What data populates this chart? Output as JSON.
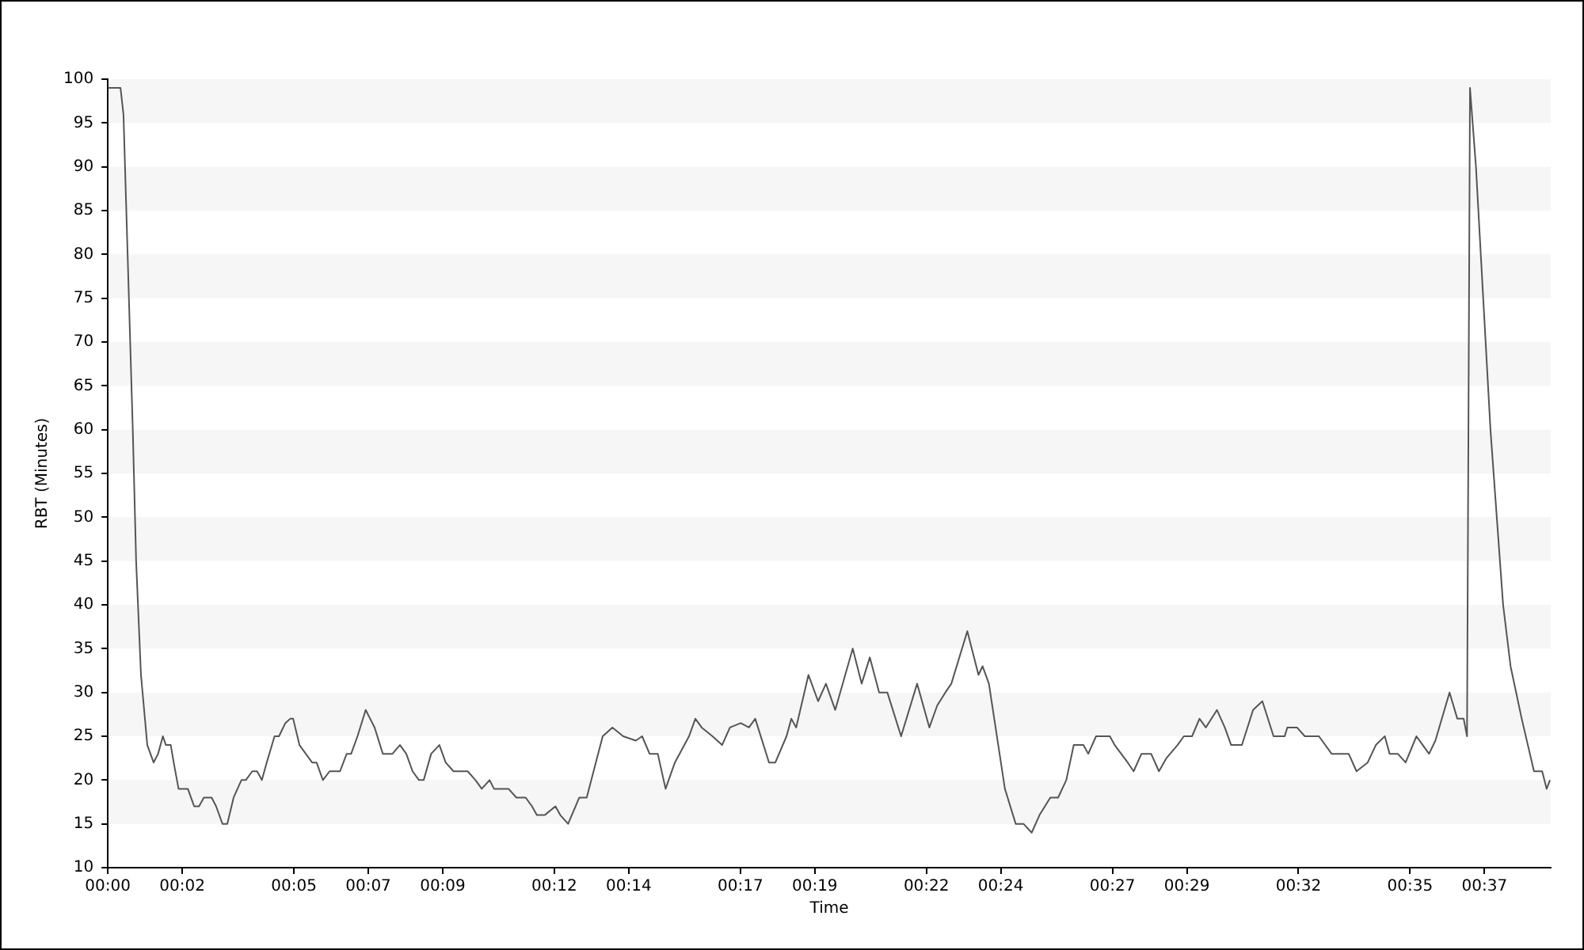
{
  "chart_data": {
    "type": "line",
    "xlabel": "Time",
    "ylabel": "RBT (Minutes)",
    "xlim": [
      0,
      38.78
    ],
    "ylim": [
      10,
      100
    ],
    "xticks": [
      {
        "value": 0,
        "label": "00:00"
      },
      {
        "value": 2,
        "label": "00:02"
      },
      {
        "value": 5,
        "label": "00:05"
      },
      {
        "value": 7,
        "label": "00:07"
      },
      {
        "value": 9,
        "label": "00:09"
      },
      {
        "value": 12,
        "label": "00:12"
      },
      {
        "value": 14,
        "label": "00:14"
      },
      {
        "value": 17,
        "label": "00:17"
      },
      {
        "value": 19,
        "label": "00:19"
      },
      {
        "value": 22,
        "label": "00:22"
      },
      {
        "value": 24,
        "label": "00:24"
      },
      {
        "value": 27,
        "label": "00:27"
      },
      {
        "value": 29,
        "label": "00:29"
      },
      {
        "value": 32,
        "label": "00:32"
      },
      {
        "value": 35,
        "label": "00:35"
      },
      {
        "value": 37,
        "label": "00:37"
      }
    ],
    "yticks": [
      10,
      15,
      20,
      25,
      30,
      35,
      40,
      45,
      50,
      55,
      60,
      65,
      70,
      75,
      80,
      85,
      90,
      95,
      100
    ],
    "legend": false,
    "marker": "none",
    "bands": [
      {
        "axis": "y",
        "from": 15,
        "to": 20,
        "color": "#f6f6f6"
      },
      {
        "axis": "y",
        "from": 25,
        "to": 30,
        "color": "#f6f6f6"
      },
      {
        "axis": "y",
        "from": 35,
        "to": 40,
        "color": "#f6f6f6"
      },
      {
        "axis": "y",
        "from": 45,
        "to": 50,
        "color": "#f6f6f6"
      },
      {
        "axis": "y",
        "from": 55,
        "to": 60,
        "color": "#f6f6f6"
      },
      {
        "axis": "y",
        "from": 65,
        "to": 70,
        "color": "#f6f6f6"
      },
      {
        "axis": "y",
        "from": 75,
        "to": 80,
        "color": "#f6f6f6"
      },
      {
        "axis": "y",
        "from": 85,
        "to": 90,
        "color": "#f6f6f6"
      },
      {
        "axis": "y",
        "from": 95,
        "to": 100,
        "color": "#f6f6f6"
      }
    ],
    "series": [
      {
        "color": "#555555",
        "x": [
          0,
          0.34,
          0.42,
          0.67,
          0.76,
          0.89,
          1.06,
          1.23,
          1.35,
          1.48,
          1.56,
          1.69,
          1.77,
          1.9,
          2.03,
          2.15,
          2.32,
          2.45,
          2.58,
          2.79,
          2.91,
          3.08,
          3.21,
          3.38,
          3.59,
          3.71,
          3.88,
          4.01,
          4.14,
          4.27,
          4.48,
          4.6,
          4.77,
          4.9,
          4.98,
          5.15,
          5.32,
          5.49,
          5.61,
          5.78,
          5.96,
          6.24,
          6.42,
          6.54,
          6.71,
          6.93,
          7.05,
          7.17,
          7.39,
          7.65,
          7.85,
          8.02,
          8.19,
          8.36,
          8.49,
          8.69,
          8.91,
          9.08,
          9.29,
          9.67,
          9.88,
          10.05,
          10.26,
          10.38,
          10.77,
          10.98,
          11.23,
          11.4,
          11.53,
          11.74,
          12.03,
          12.16,
          12.37,
          12.67,
          12.87,
          13.3,
          13.56,
          13.85,
          14.19,
          14.36,
          14.56,
          14.78,
          14.99,
          15.24,
          15.62,
          15.79,
          15.96,
          16.25,
          16.51,
          16.72,
          17.01,
          17.23,
          17.4,
          17.77,
          17.94,
          18.24,
          18.37,
          18.5,
          18.83,
          19.09,
          19.3,
          19.55,
          20.02,
          20.26,
          20.48,
          20.73,
          20.95,
          21.32,
          21.75,
          22.08,
          22.29,
          22.51,
          22.67,
          23.1,
          23.4,
          23.51,
          23.68,
          24.11,
          24.4,
          24.61,
          24.83,
          25.04,
          25.33,
          25.54,
          25.76,
          25.96,
          26.22,
          26.35,
          26.56,
          26.93,
          27.06,
          27.41,
          27.57,
          27.78,
          28.04,
          28.25,
          28.45,
          28.75,
          28.92,
          29.14,
          29.34,
          29.51,
          29.81,
          30.02,
          30.19,
          30.48,
          30.78,
          31.03,
          31.33,
          31.63,
          31.7,
          31.96,
          32.17,
          32.55,
          32.89,
          33.15,
          33.35,
          33.56,
          33.86,
          34.08,
          34.32,
          34.45,
          34.67,
          34.88,
          35.17,
          35.34,
          35.51,
          35.68,
          36.06,
          36.27,
          36.44,
          36.53,
          36.61,
          36.77,
          36.9,
          37.03,
          37.16,
          37.33,
          37.5,
          37.7,
          38,
          38.33,
          38.55,
          38.67,
          38.76
        ],
        "values": [
          99,
          99,
          96,
          60,
          45,
          32,
          24,
          22,
          23,
          25,
          24,
          24,
          22,
          19,
          19,
          19,
          17,
          17,
          18,
          18,
          17,
          15,
          15,
          18,
          20,
          20,
          21,
          21,
          20,
          22,
          25,
          25,
          26.5,
          27,
          27,
          24,
          23,
          22,
          22,
          20,
          21,
          21,
          23,
          23,
          25,
          28,
          27,
          26,
          23,
          23,
          24,
          23,
          21,
          20,
          20,
          23,
          24,
          22,
          21,
          21,
          20,
          19,
          20,
          19,
          19,
          18,
          18,
          17,
          16,
          16,
          17,
          16,
          15,
          18,
          18,
          25,
          26,
          25,
          24.5,
          25,
          23,
          23,
          19,
          22,
          25,
          27,
          26,
          25,
          24,
          26,
          26.5,
          26,
          27,
          22,
          22,
          25,
          27,
          26,
          32,
          29,
          31,
          28,
          35,
          31,
          34,
          30,
          30,
          25,
          31,
          26,
          28.5,
          30,
          31,
          37,
          32,
          33,
          31,
          19,
          15,
          15,
          14,
          16,
          18,
          18,
          20,
          24,
          24,
          23,
          25,
          25,
          24,
          22,
          21,
          23,
          23,
          21,
          22.5,
          24,
          25,
          25,
          27,
          26,
          28,
          26,
          24,
          24,
          28,
          29,
          25,
          25,
          26,
          26,
          25,
          25,
          23,
          23,
          23,
          21,
          22,
          24,
          25,
          23,
          23,
          22,
          25,
          24,
          23,
          24.5,
          30,
          27,
          27,
          25,
          99,
          90,
          80,
          70,
          60,
          50,
          40,
          33,
          27,
          21,
          21,
          19,
          20
        ]
      }
    ]
  }
}
